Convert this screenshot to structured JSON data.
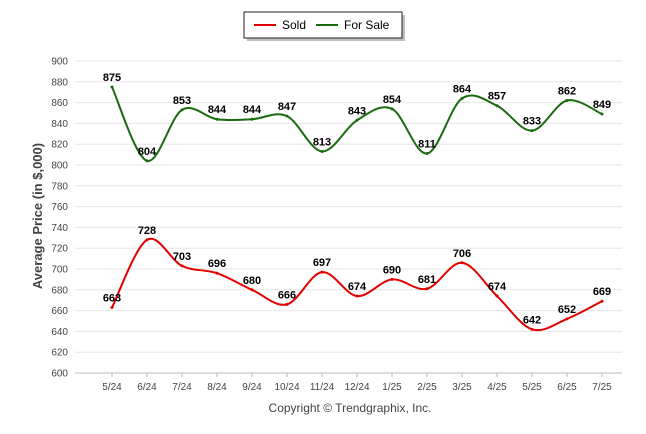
{
  "chart_data": {
    "type": "line",
    "title": "",
    "xlabel": "",
    "ylabel": "Average Price (in $,000)",
    "categories": [
      "5/24",
      "6/24",
      "7/24",
      "8/24",
      "9/24",
      "10/24",
      "11/24",
      "12/24",
      "1/25",
      "2/25",
      "3/25",
      "4/25",
      "5/25",
      "6/25",
      "7/25"
    ],
    "series": [
      {
        "name": "Sold",
        "color": "#e00000",
        "values": [
          663,
          728,
          703,
          696,
          680,
          666,
          697,
          674,
          690,
          681,
          706,
          674,
          642,
          652,
          669
        ]
      },
      {
        "name": "For Sale",
        "color": "#1a6b0f",
        "values": [
          875,
          804,
          853,
          844,
          844,
          847,
          813,
          843,
          854,
          811,
          864,
          857,
          833,
          862,
          849
        ]
      }
    ],
    "ylim": [
      600,
      900
    ],
    "yticks": [
      600,
      620,
      640,
      660,
      680,
      700,
      720,
      740,
      760,
      780,
      800,
      820,
      840,
      860,
      880,
      900
    ],
    "grid": true,
    "smooth": true,
    "data_labels": true,
    "legend_position": "top-center"
  },
  "footer": {
    "copyright": "Copyright © Trendgraphix, Inc."
  }
}
